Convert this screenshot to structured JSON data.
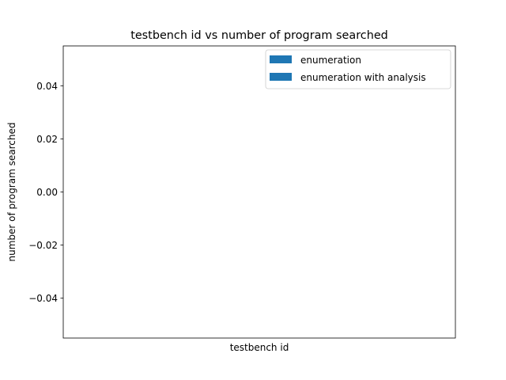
{
  "chart_data": {
    "type": "bar",
    "title": "testbench id vs number of program searched",
    "xlabel": "testbench id",
    "ylabel": "number of program searched",
    "categories": [],
    "series": [
      {
        "name": "enumeration",
        "values": []
      },
      {
        "name": "enumeration with analysis",
        "values": []
      }
    ],
    "ylim": [
      -0.055,
      0.055
    ],
    "yticks": [
      {
        "value": 0.04,
        "label": "0.04"
      },
      {
        "value": 0.02,
        "label": "0.02"
      },
      {
        "value": 0.0,
        "label": "0.00"
      },
      {
        "value": -0.02,
        "label": "−0.02"
      },
      {
        "value": -0.04,
        "label": "−0.04"
      }
    ],
    "grid": false,
    "legend_placement": "top-right",
    "colors": {
      "enumeration": "#1f77b4",
      "enumeration with analysis": "#1f77b4",
      "axes": "#000000",
      "legend_border": "#cccccc",
      "background": "#ffffff"
    }
  }
}
